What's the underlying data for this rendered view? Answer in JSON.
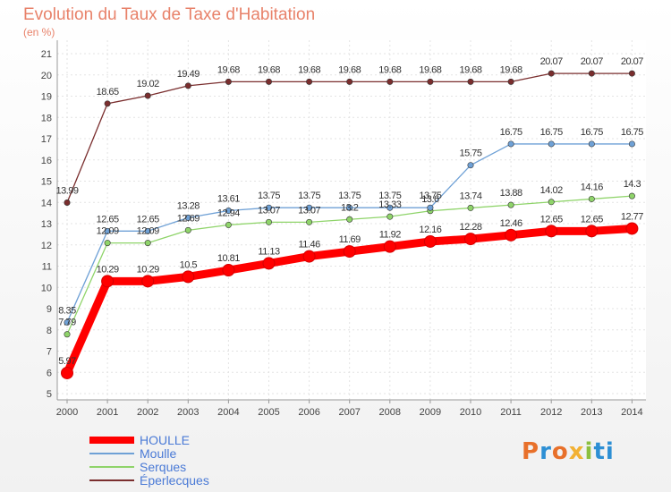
{
  "chart_data": {
    "type": "line",
    "title": "Evolution du Taux de Taxe d'Habitation",
    "unit": "(en %)",
    "x": [
      "2000",
      "2001",
      "2002",
      "2003",
      "2004",
      "2005",
      "2006",
      "2007",
      "2008",
      "2009",
      "2010",
      "2011",
      "2012",
      "2013",
      "2014"
    ],
    "ylim": [
      5,
      21
    ],
    "yticks": [
      "5",
      "6",
      "7",
      "8",
      "9",
      "10",
      "11",
      "12",
      "13",
      "14",
      "15",
      "16",
      "17",
      "18",
      "19",
      "20",
      "21"
    ],
    "grid": true,
    "legend_position": "bottom-left",
    "series": [
      {
        "name": "HOULLE",
        "color": "#ff0000",
        "values": [
          5.97,
          10.29,
          10.29,
          10.5,
          10.81,
          11.13,
          11.46,
          11.69,
          11.92,
          12.16,
          12.28,
          12.46,
          12.65,
          12.65,
          12.77
        ],
        "labels": [
          "5.97",
          "10.29",
          "10.29",
          "10.5",
          "10.81",
          "11.13",
          "11.46",
          "11.69",
          "11.92",
          "12.16",
          "12.28",
          "12.46",
          "12.65",
          "12.65",
          "12.77"
        ]
      },
      {
        "name": "Moulle",
        "color": "#6fa1d6",
        "values": [
          8.35,
          12.65,
          12.65,
          13.28,
          13.61,
          13.75,
          13.75,
          13.75,
          13.75,
          13.75,
          15.75,
          16.75,
          16.75,
          16.75,
          16.75
        ],
        "labels": [
          "8.35",
          "12.65",
          "12.65",
          "13.28",
          "13.61",
          "13.75",
          "13.75",
          "13.75",
          "13.75",
          "13.75",
          "15.75",
          "16.75",
          "16.75",
          "16.75",
          "16.75"
        ]
      },
      {
        "name": "Serques",
        "color": "#8fd46a",
        "values": [
          7.79,
          12.09,
          12.09,
          12.69,
          12.94,
          13.07,
          13.07,
          13.2,
          13.33,
          13.6,
          13.74,
          13.88,
          14.02,
          14.16,
          14.3
        ],
        "labels": [
          "7.79",
          "12.09",
          "12.09",
          "12.69",
          "12.94",
          "13.07",
          "13.07",
          "13.2",
          "13.33",
          "13.6",
          "13.74",
          "13.88",
          "14.02",
          "14.16",
          "14.3"
        ]
      },
      {
        "name": "Éperlecques",
        "color": "#7a2e2e",
        "values": [
          13.99,
          18.65,
          19.02,
          19.49,
          19.68,
          19.68,
          19.68,
          19.68,
          19.68,
          19.68,
          19.68,
          19.68,
          20.07,
          20.07,
          20.07
        ],
        "labels": [
          "13.99",
          "18.65",
          "19.02",
          "19.49",
          "19.68",
          "19.68",
          "19.68",
          "19.68",
          "19.68",
          "19.68",
          "19.68",
          "19.68",
          "20.07",
          "20.07",
          "20.07"
        ]
      }
    ]
  },
  "logo": [
    "P",
    "r",
    "o",
    "x",
    "i",
    "ti"
  ]
}
